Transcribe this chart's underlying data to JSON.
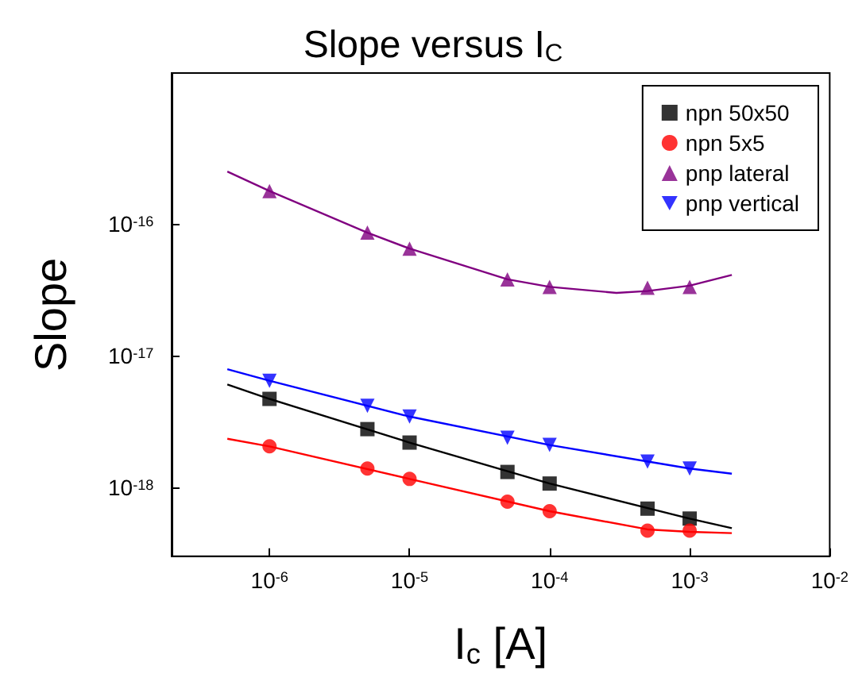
{
  "chart_data": {
    "type": "scatter",
    "title": "Slope versus I$_{C}$",
    "xlabel": "I$_{c}$ [A]",
    "ylabel": "Slope",
    "x": [
      1e-06,
      5e-06,
      1e-05,
      5e-05,
      0.0001,
      0.0005,
      0.001
    ],
    "series": [
      {
        "name": "npn 50x50",
        "color": "#000000",
        "marker": "square",
        "values": [
          4.7e-18,
          2.77e-18,
          2.19e-18,
          1.31e-18,
          1.07e-18,
          6.9e-19,
          5.8e-19
        ]
      },
      {
        "name": "npn 5x5",
        "color": "#ff0000",
        "marker": "circle",
        "values": [
          2.05e-18,
          1.39e-18,
          1.16e-18,
          7.8e-19,
          6.6e-19,
          4.7e-19,
          4.7e-19
        ]
      },
      {
        "name": "pnp lateral",
        "color": "#800080",
        "marker": "triangle",
        "values": [
          1.78e-16,
          8.6e-17,
          6.5e-17,
          3.8e-17,
          3.33e-17,
          3.28e-17,
          3.33e-17
        ]
      },
      {
        "name": "pnp vertical",
        "color": "#0000ff",
        "marker": "triangle-down",
        "values": [
          6.45e-18,
          4.17e-18,
          3.45e-18,
          2.38e-18,
          2.1e-18,
          1.57e-18,
          1.39e-18
        ]
      },
      {
        "type": "line",
        "color": "#000000",
        "marker": "none",
        "x": [
          5e-07,
          1e-06,
          1e-05,
          0.0001,
          0.001,
          0.002
        ],
        "values": [
          6.05e-18,
          4.7e-18,
          2.19e-18,
          1.07e-18,
          5.8e-19,
          4.9e-19
        ]
      },
      {
        "type": "line",
        "color": "#ff0000",
        "marker": "none",
        "x": [
          5e-07,
          1e-06,
          1e-05,
          0.0001,
          0.0005,
          0.001,
          0.002
        ],
        "values": [
          2.34e-18,
          2.05e-18,
          1.16e-18,
          6.6e-19,
          4.8e-19,
          4.6e-19,
          4.5e-19
        ]
      },
      {
        "type": "line",
        "color": "#800080",
        "marker": "none",
        "x": [
          5e-07,
          1e-06,
          5e-06,
          1e-05,
          5e-05,
          0.0001,
          0.0003,
          0.0005,
          0.001,
          0.002
        ],
        "values": [
          2.5e-16,
          1.78e-16,
          8.6e-17,
          6.5e-17,
          3.8e-17,
          3.33e-17,
          3e-17,
          3.1e-17,
          3.4e-17,
          4.1e-17
        ]
      },
      {
        "type": "line",
        "color": "#0000ff",
        "marker": "none",
        "x": [
          5e-07,
          1e-06,
          1e-05,
          0.0001,
          0.001,
          0.002
        ],
        "values": [
          7.9e-18,
          6.45e-18,
          3.45e-18,
          2.1e-18,
          1.39e-18,
          1.27e-18
        ]
      }
    ],
    "xlim": [
      2e-07,
      0.01
    ],
    "xticks": [
      {
        "value": 1e-06,
        "label": "10$^{-6}$"
      },
      {
        "value": 1e-05,
        "label": "10$^{-5}$"
      },
      {
        "value": 0.0001,
        "label": "10$^{-4}$"
      },
      {
        "value": 0.001,
        "label": "10$^{-3}$"
      },
      {
        "value": 0.01,
        "label": "10$^{-2}$"
      }
    ],
    "ylim": [
      3e-19,
      1.4e-15
    ],
    "yticks": [
      {
        "value": 1e-18,
        "label": "10$^{-18}$"
      },
      {
        "value": 1e-17,
        "label": "10$^{-17}$"
      },
      {
        "value": 1e-16,
        "label": "10$^{-16}$"
      }
    ],
    "log": "xy",
    "grid": false,
    "legend": "top right"
  }
}
